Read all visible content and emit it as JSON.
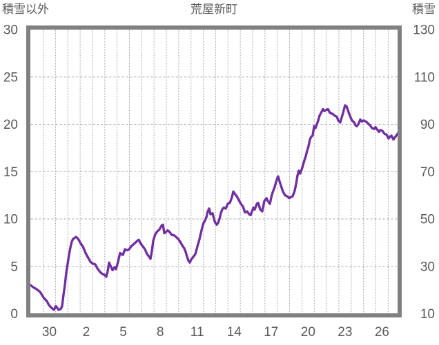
{
  "colors": {
    "line": "#7030A0",
    "plot_border": "#808080",
    "gridline": "#a6a6a6",
    "text": "#595959",
    "background": "#ffffff"
  },
  "chart_data": {
    "type": "line",
    "title": "荒屋新町",
    "grid": "dashed, vertical line each day, horizontal line each 5 units (left scale)",
    "legend": "none",
    "left_axis": {
      "title": "積雪以外",
      "min": 0,
      "max": 30,
      "tick_values": [
        0,
        5,
        10,
        15,
        20,
        25,
        30
      ],
      "tick_labels": [
        "0",
        "5",
        "10",
        "15",
        "20",
        "25",
        "30"
      ]
    },
    "right_axis": {
      "title": "積雪",
      "min": 10,
      "max": 130,
      "tick_values": [
        10,
        30,
        50,
        70,
        90,
        110,
        130
      ],
      "tick_labels": [
        "10",
        "30",
        "50",
        "70",
        "90",
        "110",
        "130"
      ]
    },
    "x_axis": {
      "unit": "day of month",
      "tick_labels": [
        "30",
        "2",
        "5",
        "8",
        "11",
        "14",
        "17",
        "20",
        "23",
        "26"
      ],
      "tick_positions_days": [
        1.5,
        4.5,
        7.5,
        10.5,
        13.5,
        16.5,
        19.5,
        22.5,
        25.5,
        28.5
      ],
      "range_days": [
        0,
        29.82
      ],
      "minor_gridline_every_days": 1
    },
    "series": [
      {
        "name": "積雪",
        "color": "#7030A0",
        "scale": "left-axis units (right axis value = left value * 4 + 10)",
        "points": [
          [
            0,
            3.0
          ],
          [
            0.18,
            2.8
          ],
          [
            0.46,
            2.6
          ],
          [
            0.75,
            2.3
          ],
          [
            1.03,
            1.7
          ],
          [
            1.31,
            1.3
          ],
          [
            1.47,
            0.9
          ],
          [
            1.7,
            0.6
          ],
          [
            1.87,
            0.4
          ],
          [
            2.03,
            0.8
          ],
          [
            2.26,
            0.4
          ],
          [
            2.43,
            0.5
          ],
          [
            2.54,
            0.8
          ],
          [
            2.65,
            2.0
          ],
          [
            2.76,
            3.0
          ],
          [
            2.87,
            4.3
          ],
          [
            2.99,
            5.3
          ],
          [
            3.1,
            6.2
          ],
          [
            3.21,
            7.0
          ],
          [
            3.32,
            7.6
          ],
          [
            3.43,
            7.9
          ],
          [
            3.55,
            8.0
          ],
          [
            3.66,
            8.1
          ],
          [
            3.77,
            8.0
          ],
          [
            3.88,
            7.8
          ],
          [
            4.05,
            7.4
          ],
          [
            4.22,
            7.1
          ],
          [
            4.44,
            6.4
          ],
          [
            4.61,
            6.0
          ],
          [
            4.83,
            5.5
          ],
          [
            5.0,
            5.3
          ],
          [
            5.23,
            5.2
          ],
          [
            5.39,
            4.8
          ],
          [
            5.62,
            4.4
          ],
          [
            5.79,
            4.2
          ],
          [
            5.96,
            4.1
          ],
          [
            6.12,
            3.9
          ],
          [
            6.24,
            4.5
          ],
          [
            6.35,
            5.4
          ],
          [
            6.52,
            4.9
          ],
          [
            6.63,
            4.6
          ],
          [
            6.79,
            4.9
          ],
          [
            6.91,
            4.7
          ],
          [
            7.08,
            5.5
          ],
          [
            7.24,
            6.4
          ],
          [
            7.36,
            6.3
          ],
          [
            7.47,
            6.2
          ],
          [
            7.64,
            6.8
          ],
          [
            7.8,
            6.7
          ],
          [
            7.97,
            6.8
          ],
          [
            8.14,
            7.1
          ],
          [
            8.31,
            7.3
          ],
          [
            8.48,
            7.5
          ],
          [
            8.64,
            7.7
          ],
          [
            8.76,
            7.8
          ],
          [
            8.92,
            7.4
          ],
          [
            9.09,
            7.1
          ],
          [
            9.26,
            6.8
          ],
          [
            9.43,
            6.3
          ],
          [
            9.6,
            6.0
          ],
          [
            9.71,
            5.8
          ],
          [
            9.82,
            6.6
          ],
          [
            9.93,
            7.7
          ],
          [
            10.1,
            8.4
          ],
          [
            10.27,
            8.7
          ],
          [
            10.44,
            8.9
          ],
          [
            10.61,
            9.3
          ],
          [
            10.72,
            9.4
          ],
          [
            10.83,
            8.5
          ],
          [
            10.94,
            8.6
          ],
          [
            11.11,
            8.8
          ],
          [
            11.28,
            8.6
          ],
          [
            11.45,
            8.3
          ],
          [
            11.61,
            8.3
          ],
          [
            11.78,
            8.1
          ],
          [
            11.95,
            7.9
          ],
          [
            12.12,
            7.6
          ],
          [
            12.29,
            7.2
          ],
          [
            12.45,
            6.9
          ],
          [
            12.57,
            6.5
          ],
          [
            12.68,
            6.0
          ],
          [
            12.79,
            5.6
          ],
          [
            12.9,
            5.4
          ],
          [
            13.01,
            5.7
          ],
          [
            13.18,
            6.0
          ],
          [
            13.35,
            6.3
          ],
          [
            13.52,
            7.1
          ],
          [
            13.69,
            7.9
          ],
          [
            13.8,
            8.5
          ],
          [
            13.91,
            9.1
          ],
          [
            14.02,
            9.6
          ],
          [
            14.13,
            9.8
          ],
          [
            14.25,
            10.2
          ],
          [
            14.36,
            10.8
          ],
          [
            14.47,
            11.1
          ],
          [
            14.58,
            10.5
          ],
          [
            14.75,
            10.6
          ],
          [
            14.86,
            10.0
          ],
          [
            14.97,
            9.6
          ],
          [
            15.09,
            9.4
          ],
          [
            15.2,
            9.6
          ],
          [
            15.31,
            10.0
          ],
          [
            15.42,
            10.6
          ],
          [
            15.53,
            11.0
          ],
          [
            15.65,
            11.2
          ],
          [
            15.82,
            11.1
          ],
          [
            15.98,
            11.6
          ],
          [
            16.15,
            11.7
          ],
          [
            16.32,
            12.3
          ],
          [
            16.43,
            12.9
          ],
          [
            16.54,
            12.7
          ],
          [
            16.71,
            12.4
          ],
          [
            16.88,
            12.0
          ],
          [
            17.05,
            11.6
          ],
          [
            17.22,
            11.3
          ],
          [
            17.38,
            10.7
          ],
          [
            17.55,
            10.8
          ],
          [
            17.72,
            10.5
          ],
          [
            17.83,
            10.4
          ],
          [
            17.95,
            10.8
          ],
          [
            18.06,
            11.2
          ],
          [
            18.17,
            11.0
          ],
          [
            18.34,
            11.6
          ],
          [
            18.45,
            11.7
          ],
          [
            18.62,
            11.0
          ],
          [
            18.78,
            10.8
          ],
          [
            18.95,
            11.9
          ],
          [
            19.12,
            12.2
          ],
          [
            19.23,
            11.9
          ],
          [
            19.4,
            11.6
          ],
          [
            19.57,
            12.6
          ],
          [
            19.68,
            13.0
          ],
          [
            19.79,
            13.4
          ],
          [
            19.9,
            13.9
          ],
          [
            20.02,
            14.4
          ],
          [
            20.07,
            14.5
          ],
          [
            20.18,
            14.0
          ],
          [
            20.3,
            13.5
          ],
          [
            20.46,
            12.9
          ],
          [
            20.63,
            12.5
          ],
          [
            20.8,
            12.4
          ],
          [
            20.97,
            12.2
          ],
          [
            21.08,
            12.3
          ],
          [
            21.25,
            12.4
          ],
          [
            21.42,
            13.0
          ],
          [
            21.53,
            13.7
          ],
          [
            21.64,
            14.6
          ],
          [
            21.75,
            15.1
          ],
          [
            21.86,
            14.8
          ],
          [
            21.98,
            15.2
          ],
          [
            22.09,
            15.7
          ],
          [
            22.2,
            16.2
          ],
          [
            22.31,
            16.6
          ],
          [
            22.42,
            17.2
          ],
          [
            22.54,
            17.7
          ],
          [
            22.65,
            18.4
          ],
          [
            22.76,
            18.7
          ],
          [
            22.87,
            18.8
          ],
          [
            22.93,
            19.3
          ],
          [
            22.99,
            19.8
          ],
          [
            23.1,
            19.6
          ],
          [
            23.21,
            20.0
          ],
          [
            23.32,
            20.4
          ],
          [
            23.43,
            20.9
          ],
          [
            23.55,
            21.2
          ],
          [
            23.71,
            21.6
          ],
          [
            23.83,
            21.4
          ],
          [
            23.94,
            21.5
          ],
          [
            24.11,
            21.6
          ],
          [
            24.28,
            21.2
          ],
          [
            24.5,
            21.1
          ],
          [
            24.67,
            20.9
          ],
          [
            24.83,
            20.8
          ],
          [
            24.95,
            20.4
          ],
          [
            25.11,
            20.2
          ],
          [
            25.34,
            21.2
          ],
          [
            25.5,
            22.0
          ],
          [
            25.62,
            21.9
          ],
          [
            25.73,
            21.5
          ],
          [
            25.84,
            21.1
          ],
          [
            25.96,
            20.7
          ],
          [
            26.07,
            20.4
          ],
          [
            26.24,
            20.2
          ],
          [
            26.35,
            19.9
          ],
          [
            26.46,
            19.8
          ],
          [
            26.57,
            20.0
          ],
          [
            26.74,
            20.5
          ],
          [
            26.85,
            20.3
          ],
          [
            27.02,
            20.4
          ],
          [
            27.19,
            20.3
          ],
          [
            27.36,
            20.1
          ],
          [
            27.52,
            19.9
          ],
          [
            27.69,
            19.6
          ],
          [
            27.86,
            19.5
          ],
          [
            27.97,
            19.7
          ],
          [
            28.14,
            19.4
          ],
          [
            28.25,
            19.2
          ],
          [
            28.36,
            19.4
          ],
          [
            28.53,
            19.3
          ],
          [
            28.7,
            19.0
          ],
          [
            28.87,
            18.9
          ],
          [
            29.03,
            18.5
          ],
          [
            29.15,
            18.7
          ],
          [
            29.26,
            18.8
          ],
          [
            29.43,
            18.4
          ],
          [
            29.54,
            18.6
          ],
          [
            29.71,
            18.9
          ],
          [
            29.82,
            19.1
          ]
        ]
      }
    ]
  }
}
